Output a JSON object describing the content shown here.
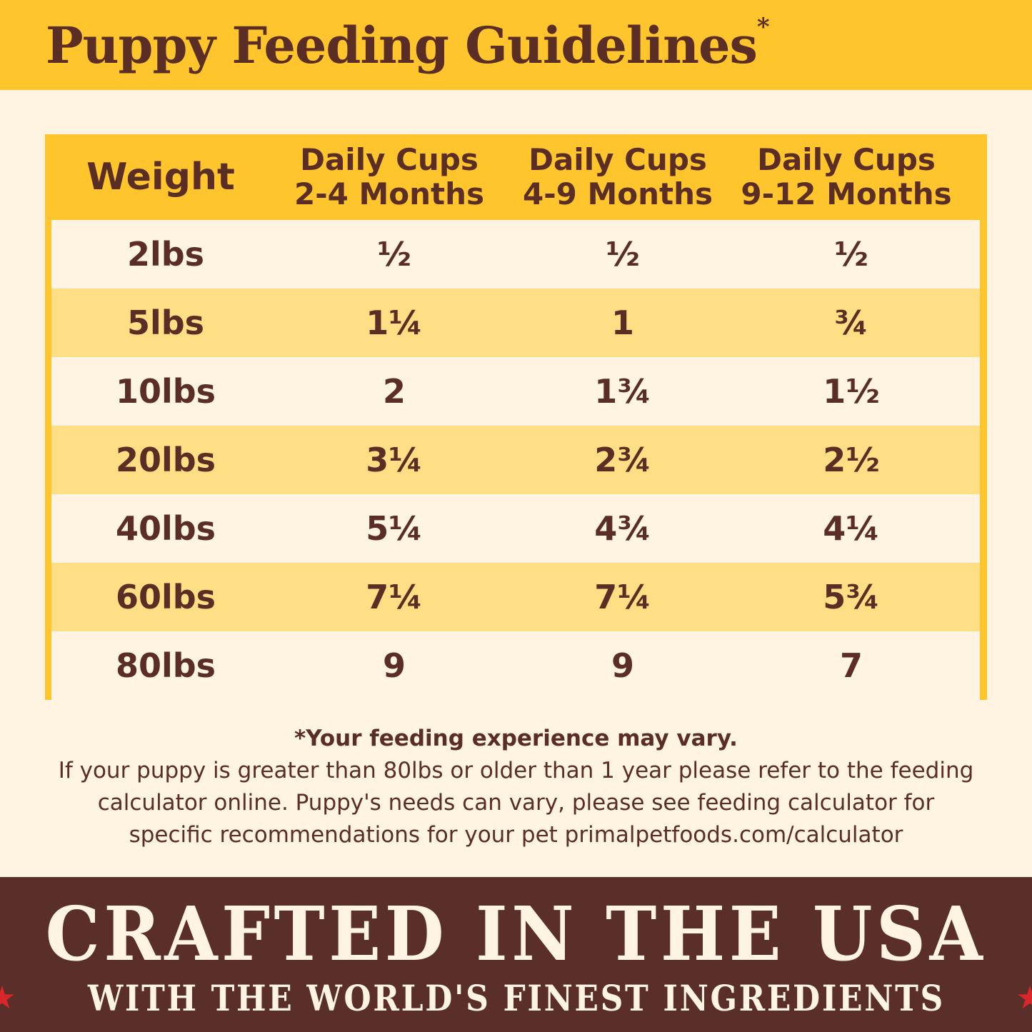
{
  "header": {
    "title": "Puppy Feeding Guidelines",
    "asterisk": "*"
  },
  "table": {
    "columns": [
      {
        "line1": "Weight",
        "line2": ""
      },
      {
        "line1": "Daily Cups",
        "line2": "2-4 Months"
      },
      {
        "line1": "Daily Cups",
        "line2": "4-9 Months"
      },
      {
        "line1": "Daily Cups",
        "line2": "9-12 Months"
      }
    ],
    "rows": [
      [
        "2lbs",
        "½",
        "½",
        "½"
      ],
      [
        "5lbs",
        "1¼",
        "1",
        "¾"
      ],
      [
        "10lbs",
        "2",
        "1¾",
        "1½"
      ],
      [
        "20lbs",
        "3¼",
        "2¾",
        "2½"
      ],
      [
        "40lbs",
        "5¼",
        "4¾",
        "4¼"
      ],
      [
        "60lbs",
        "7¼",
        "7¼",
        "5¾"
      ],
      [
        "80lbs",
        "9",
        "9",
        "7"
      ]
    ]
  },
  "footnote": {
    "heading": "*Your feeding experience may vary.",
    "lines": [
      "If your puppy is greater than 80lbs or older than 1 year please refer to the feeding",
      "calculator online. Puppy's needs can vary, please see feeding calculator for",
      "specific recommendations for your pet primalpetfoods.com/calculator"
    ]
  },
  "footer": {
    "headline": "CRAFTED IN THE USA",
    "tagline": "WITH THE WORLD'S FINEST INGREDIENTS",
    "star_icon": "★"
  },
  "colors": {
    "yellow": "#fec52c",
    "light_yellow": "#ffdf85",
    "cream": "#fff4e1",
    "brown": "#5b2f29",
    "red": "#d9262b"
  }
}
